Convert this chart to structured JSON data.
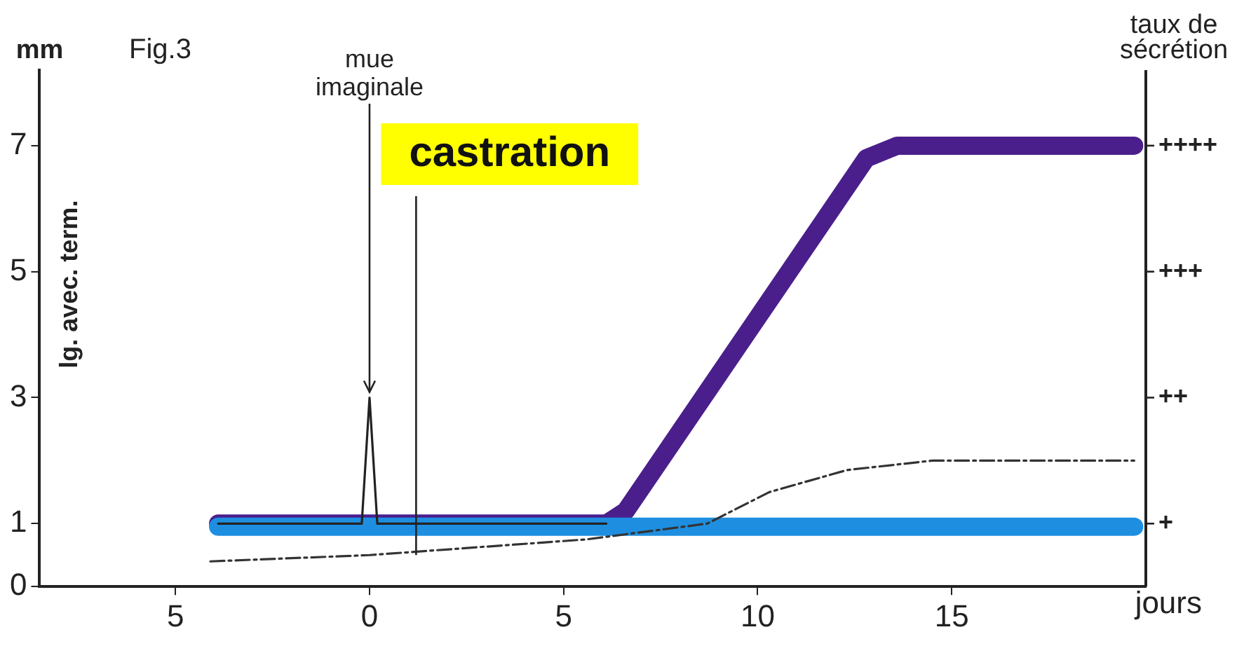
{
  "chart_data": {
    "type": "line",
    "title": "Fig.3",
    "xlabel": "jours",
    "ylabel": "lg. avec. term.",
    "y2label": "taux de sécrétion",
    "annotations": [
      "mm",
      {
        "text": "mue imaginale",
        "x": 0,
        "y": 3
      },
      "+",
      "++",
      "+++",
      "++++"
    ],
    "ref_lines": [
      {
        "axis": "x",
        "value": 1.2,
        "label": "castration"
      }
    ],
    "xlim": [
      -8.5,
      20
    ],
    "xticks": [
      {
        "value": -5,
        "label": "5"
      },
      0,
      5,
      10,
      15
    ],
    "ylim": [
      0,
      8.2
    ],
    "yticks": [
      0,
      1,
      3,
      5,
      7
    ],
    "grid": false,
    "legend": false,
    "marker": "none",
    "series": [
      {
        "color": "#4a1f8c",
        "x": [
          -3.9,
          6.1,
          6.6,
          12.8,
          13.6,
          19.7
        ],
        "values": [
          1,
          1,
          1.2,
          6.8,
          7,
          7
        ]
      },
      {
        "color": "#1e8fe0",
        "x": [
          -3.9,
          19.7
        ],
        "values": [
          0.95,
          0.95
        ]
      },
      {
        "color": "#222222",
        "x": [
          -3.9,
          -0.2,
          0,
          0.2,
          6.1
        ],
        "values": [
          1,
          1,
          3,
          1,
          1
        ]
      },
      {
        "color": "#333333",
        "line_style": "dashed",
        "x": [
          -4.1,
          0,
          5.6,
          8.7,
          10.3,
          12.3,
          14.5,
          19.7
        ],
        "values": [
          0.4,
          0.5,
          0.75,
          1,
          1.5,
          1.85,
          2,
          2
        ]
      }
    ]
  }
}
